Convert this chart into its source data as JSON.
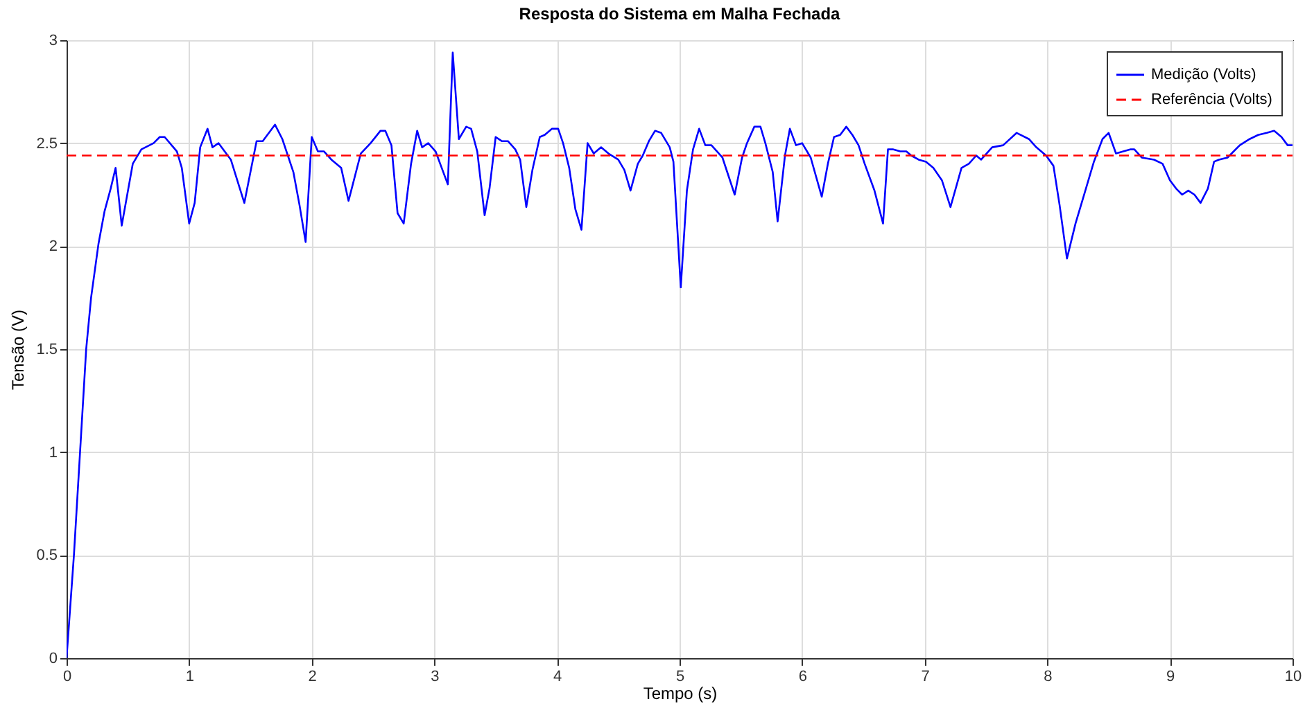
{
  "chart_data": {
    "type": "line",
    "title": "Resposta do Sistema em Malha Fechada",
    "xlabel": "Tempo (s)",
    "ylabel": "Tensão (V)",
    "xlim": [
      0,
      10
    ],
    "ylim": [
      0,
      3
    ],
    "xticks": [
      0,
      1,
      2,
      3,
      4,
      5,
      6,
      7,
      8,
      9,
      10
    ],
    "yticks": [
      0,
      0.5,
      1,
      1.5,
      2,
      2.5,
      3
    ],
    "grid": true,
    "legend": "top right",
    "series": [
      {
        "name": "Medição (Volts)",
        "color": "#0000ff",
        "line_style": "solid",
        "x": [
          0,
          0.06,
          0.11,
          0.16,
          0.2,
          0.26,
          0.31,
          0.36,
          0.4,
          0.45,
          0.54,
          0.61,
          0.71,
          0.76,
          0.8,
          0.9,
          0.94,
          1.0,
          1.045,
          1.09,
          1.15,
          1.19,
          1.24,
          1.34,
          1.45,
          1.55,
          1.6,
          1.7,
          1.76,
          1.85,
          1.9,
          1.95,
          2.0,
          2.05,
          2.1,
          2.16,
          2.24,
          2.3,
          2.4,
          2.48,
          2.56,
          2.6,
          2.65,
          2.7,
          2.75,
          2.81,
          2.86,
          2.9,
          2.95,
          3.01,
          3.06,
          3.11,
          3.15,
          3.2,
          3.26,
          3.3,
          3.35,
          3.41,
          3.45,
          3.5,
          3.55,
          3.6,
          3.66,
          3.7,
          3.75,
          3.8,
          3.86,
          3.9,
          3.96,
          4.01,
          4.05,
          4.1,
          4.15,
          4.2,
          4.25,
          4.3,
          4.36,
          4.42,
          4.5,
          4.55,
          4.6,
          4.66,
          4.7,
          4.75,
          4.8,
          4.85,
          4.92,
          4.95,
          5.01,
          5.06,
          5.11,
          5.16,
          5.21,
          5.26,
          5.35,
          5.4,
          5.45,
          5.51,
          5.55,
          5.61,
          5.66,
          5.7,
          5.76,
          5.8,
          5.86,
          5.9,
          5.95,
          6.0,
          6.07,
          6.16,
          6.21,
          6.26,
          6.31,
          6.36,
          6.41,
          6.46,
          6.51,
          6.59,
          6.66,
          6.7,
          6.74,
          6.8,
          6.85,
          6.89,
          6.95,
          7.01,
          7.07,
          7.14,
          7.21,
          7.3,
          7.36,
          7.42,
          7.46,
          7.55,
          7.64,
          7.75,
          7.85,
          7.91,
          7.99,
          8.05,
          8.1,
          8.16,
          8.23,
          8.31,
          8.38,
          8.45,
          8.5,
          8.56,
          8.62,
          8.68,
          8.71,
          8.77,
          8.87,
          8.94,
          9.0,
          9.05,
          9.1,
          9.15,
          9.2,
          9.25,
          9.31,
          9.36,
          9.4,
          9.47,
          9.57,
          9.65,
          9.72,
          9.79,
          9.85,
          9.91,
          9.96,
          10.0
        ],
        "values": [
          0,
          0.5,
          1.0,
          1.5,
          1.75,
          2.01,
          2.17,
          2.28,
          2.38,
          2.1,
          2.4,
          2.47,
          2.5,
          2.53,
          2.53,
          2.46,
          2.38,
          2.11,
          2.21,
          2.48,
          2.57,
          2.48,
          2.5,
          2.42,
          2.21,
          2.51,
          2.51,
          2.59,
          2.52,
          2.36,
          2.2,
          2.02,
          2.53,
          2.46,
          2.46,
          2.42,
          2.38,
          2.22,
          2.45,
          2.5,
          2.56,
          2.56,
          2.49,
          2.16,
          2.11,
          2.4,
          2.56,
          2.48,
          2.5,
          2.46,
          2.38,
          2.3,
          2.94,
          2.52,
          2.58,
          2.57,
          2.46,
          2.15,
          2.28,
          2.53,
          2.51,
          2.51,
          2.47,
          2.42,
          2.19,
          2.37,
          2.53,
          2.54,
          2.57,
          2.57,
          2.5,
          2.38,
          2.18,
          2.08,
          2.5,
          2.45,
          2.48,
          2.45,
          2.42,
          2.37,
          2.27,
          2.4,
          2.44,
          2.51,
          2.56,
          2.55,
          2.48,
          2.41,
          1.8,
          2.27,
          2.47,
          2.57,
          2.49,
          2.49,
          2.43,
          2.34,
          2.25,
          2.43,
          2.5,
          2.58,
          2.58,
          2.5,
          2.36,
          2.12,
          2.44,
          2.57,
          2.49,
          2.5,
          2.43,
          2.24,
          2.4,
          2.53,
          2.54,
          2.58,
          2.54,
          2.49,
          2.4,
          2.27,
          2.11,
          2.47,
          2.47,
          2.46,
          2.46,
          2.44,
          2.42,
          2.41,
          2.38,
          2.32,
          2.19,
          2.38,
          2.4,
          2.44,
          2.42,
          2.48,
          2.49,
          2.55,
          2.52,
          2.48,
          2.44,
          2.39,
          2.2,
          1.94,
          2.11,
          2.27,
          2.41,
          2.52,
          2.55,
          2.45,
          2.46,
          2.47,
          2.47,
          2.43,
          2.42,
          2.4,
          2.32,
          2.28,
          2.25,
          2.27,
          2.25,
          2.21,
          2.28,
          2.41,
          2.42,
          2.43,
          2.49,
          2.52,
          2.54,
          2.55,
          2.56,
          2.53,
          2.49,
          2.49
        ]
      },
      {
        "name": "Referência (Volts)",
        "color": "#ff0000",
        "line_style": "dashed",
        "x": [
          0,
          10
        ],
        "values": [
          2.44,
          2.44
        ]
      }
    ]
  }
}
